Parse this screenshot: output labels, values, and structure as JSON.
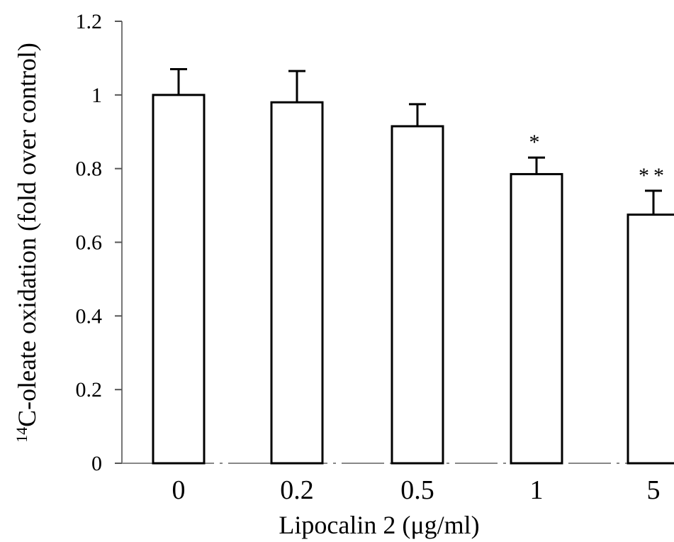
{
  "chart_data": {
    "type": "bar",
    "categories": [
      "0",
      "0.2",
      "0.5",
      "1",
      "5"
    ],
    "values": [
      1.0,
      0.98,
      0.915,
      0.785,
      0.675
    ],
    "errors": [
      0.07,
      0.085,
      0.06,
      0.045,
      0.065
    ],
    "annotations": [
      "",
      "",
      "",
      "*",
      "**"
    ],
    "ylim": [
      0,
      1.2
    ],
    "yticks": [
      "0",
      "0.2",
      "0.4",
      "0.6",
      "0.8",
      "1",
      "1.2"
    ],
    "xlabel": "Lipocalin 2 (μg/ml)",
    "ylabel_superscript": "14",
    "ylabel_main": "C-oleate oxidation (fold over control)",
    "grid": false,
    "bar_fill": "#ffffff",
    "bar_stroke": "#000000"
  }
}
